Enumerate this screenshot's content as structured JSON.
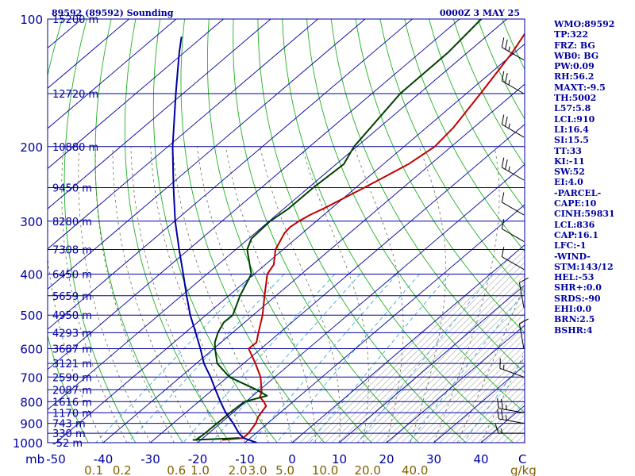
{
  "header": {
    "station": "89592 (89592) Sounding",
    "time": "0000Z  3 MAY 25"
  },
  "indices": [
    "WMO:89592",
    "TP:322",
    "FRZ: BG",
    "WB0: BG",
    "PW:0.09",
    "RH:56.2",
    "MAXT:-9.5",
    "TH:5002",
    "L57:5.8",
    "LCL:910",
    "LI:16.4",
    "SI:15.5",
    "TT:33",
    "KI:-11",
    "SW:52",
    "EI:4.0",
    "-PARCEL-",
    "CAPE:10",
    "CINH:59831",
    "LCL:836",
    "CAP:16.1",
    "LFC:-1",
    "-WIND-",
    "STM:143/12",
    "HEL:-53",
    "SHR+:0.0",
    "SRDS:-90",
    "EHI:0.0",
    "BRN:2.5",
    "BSHR:4"
  ],
  "chart_data": {
    "type": "line",
    "title": "89592 (89592) Sounding",
    "subtitle": "0000Z  3 MAY 25",
    "xlabel": "C",
    "ylabel": "mb",
    "xlim": [
      -50,
      50
    ],
    "ylim": [
      1000,
      100
    ],
    "y_scale": "log",
    "x_ticks": [
      "-50",
      "-40",
      "-30",
      "-20",
      "-10",
      "0",
      "10",
      "20",
      "30",
      "40"
    ],
    "y_ticks": [
      {
        "p": 100,
        "label": "100"
      },
      {
        "p": 200,
        "label": "200"
      },
      {
        "p": 300,
        "label": "300"
      },
      {
        "p": 400,
        "label": "400"
      },
      {
        "p": 500,
        "label": "500"
      },
      {
        "p": 600,
        "label": "600"
      },
      {
        "p": 700,
        "label": "700"
      },
      {
        "p": 800,
        "label": "800"
      },
      {
        "p": 900,
        "label": "900"
      },
      {
        "p": 1000,
        "label": "1000"
      }
    ],
    "mixing_ratio_label": "g/kg",
    "mixing_ratio_ticks": [
      {
        "label": "0.1",
        "t": -42
      },
      {
        "label": "0.2",
        "t": -36
      },
      {
        "label": "0.6",
        "t": -24.5
      },
      {
        "label": "1.0",
        "t": -19.5
      },
      {
        "label": "2.0",
        "t": -11.5
      },
      {
        "label": "3.0",
        "t": -7.3
      },
      {
        "label": "5.0",
        "t": -1.5
      },
      {
        "label": "10.0",
        "t": 7
      },
      {
        "label": "20.0",
        "t": 16
      },
      {
        "label": "40.0",
        "t": 26
      }
    ],
    "height_labels": [
      {
        "p": 100,
        "label": "15200 m"
      },
      {
        "p": 150,
        "label": "12720 m"
      },
      {
        "p": 200,
        "label": "10880 m"
      },
      {
        "p": 250,
        "label": "9450 m"
      },
      {
        "p": 300,
        "label": "8280 m"
      },
      {
        "p": 350,
        "label": "7308 m"
      },
      {
        "p": 400,
        "label": "6450 m"
      },
      {
        "p": 450,
        "label": "5659 m"
      },
      {
        "p": 500,
        "label": "4950 m"
      },
      {
        "p": 550,
        "label": "4293 m"
      },
      {
        "p": 600,
        "label": "3687 m"
      },
      {
        "p": 650,
        "label": "3121 m"
      },
      {
        "p": 700,
        "label": "2590 m"
      },
      {
        "p": 750,
        "label": "2087 m"
      },
      {
        "p": 800,
        "label": "1616 m"
      },
      {
        "p": 850,
        "label": "1170 m"
      },
      {
        "p": 900,
        "label": "743 m"
      },
      {
        "p": 950,
        "label": "330 m"
      },
      {
        "p": 1000,
        "label": "-52 m"
      }
    ],
    "series": [
      {
        "color": "#c00000",
        "points": [
          {
            "p": 985,
            "t": -15.5
          },
          {
            "p": 975,
            "t": -11.5
          },
          {
            "p": 950,
            "t": -11.6
          },
          {
            "p": 900,
            "t": -12.5
          },
          {
            "p": 870,
            "t": -13.6
          },
          {
            "p": 850,
            "t": -14.0
          },
          {
            "p": 820,
            "t": -14.6
          },
          {
            "p": 800,
            "t": -16.2
          },
          {
            "p": 780,
            "t": -18.2
          },
          {
            "p": 760,
            "t": -19.0
          },
          {
            "p": 700,
            "t": -23.0
          },
          {
            "p": 650,
            "t": -27.5
          },
          {
            "p": 600,
            "t": -32.6
          },
          {
            "p": 580,
            "t": -32.5
          },
          {
            "p": 550,
            "t": -34.5
          },
          {
            "p": 500,
            "t": -38.0
          },
          {
            "p": 450,
            "t": -42.4
          },
          {
            "p": 400,
            "t": -47.2
          },
          {
            "p": 380,
            "t": -48.2
          },
          {
            "p": 350,
            "t": -51.6
          },
          {
            "p": 320,
            "t": -53.8
          },
          {
            "p": 310,
            "t": -54.1
          },
          {
            "p": 300,
            "t": -53.7
          },
          {
            "p": 290,
            "t": -52.9
          },
          {
            "p": 280,
            "t": -51.6
          },
          {
            "p": 250,
            "t": -48.2
          },
          {
            "p": 220,
            "t": -44.7
          },
          {
            "p": 200,
            "t": -43.5
          },
          {
            "p": 180,
            "t": -44.3
          },
          {
            "p": 150,
            "t": -47.0
          },
          {
            "p": 120,
            "t": -50.5
          },
          {
            "p": 100,
            "t": -54.1
          }
        ]
      },
      {
        "color": "#004000",
        "points": [
          {
            "p": 975,
            "t": -12.3
          },
          {
            "p": 985,
            "t": -21.6
          },
          {
            "p": 985,
            "t": -21.1
          },
          {
            "p": 960,
            "t": -20.8
          },
          {
            "p": 900,
            "t": -20.7
          },
          {
            "p": 850,
            "t": -20.6
          },
          {
            "p": 800,
            "t": -20.3
          },
          {
            "p": 775,
            "t": -17.0
          },
          {
            "p": 750,
            "t": -20.7
          },
          {
            "p": 700,
            "t": -29.6
          },
          {
            "p": 650,
            "t": -35.6
          },
          {
            "p": 600,
            "t": -39.7
          },
          {
            "p": 580,
            "t": -41.3
          },
          {
            "p": 550,
            "t": -43.1
          },
          {
            "p": 520,
            "t": -44.4
          },
          {
            "p": 500,
            "t": -44.3
          },
          {
            "p": 450,
            "t": -47.6
          },
          {
            "p": 400,
            "t": -50.6
          },
          {
            "p": 350,
            "t": -57.6
          },
          {
            "p": 330,
            "t": -59.4
          },
          {
            "p": 300,
            "t": -59.8
          },
          {
            "p": 280,
            "t": -59.0
          },
          {
            "p": 250,
            "t": -59.0
          },
          {
            "p": 220,
            "t": -58.4
          },
          {
            "p": 200,
            "t": -60.6
          },
          {
            "p": 150,
            "t": -64.0
          },
          {
            "p": 120,
            "t": -64.1
          },
          {
            "p": 100,
            "t": -65.4
          }
        ]
      },
      {
        "color": "#0000a0",
        "points": [
          {
            "p": 1000,
            "t": -7.5
          },
          {
            "p": 975,
            "t": -11.5
          },
          {
            "p": 950,
            "t": -13.6
          },
          {
            "p": 900,
            "t": -17.3
          },
          {
            "p": 850,
            "t": -21.5
          },
          {
            "p": 800,
            "t": -25.4
          },
          {
            "p": 750,
            "t": -29.4
          },
          {
            "p": 700,
            "t": -33.6
          },
          {
            "p": 650,
            "t": -38.4
          },
          {
            "p": 600,
            "t": -42.8
          },
          {
            "p": 550,
            "t": -47.8
          },
          {
            "p": 500,
            "t": -53.3
          },
          {
            "p": 450,
            "t": -58.9
          },
          {
            "p": 400,
            "t": -65.0
          },
          {
            "p": 350,
            "t": -72.0
          },
          {
            "p": 300,
            "t": -79.9
          },
          {
            "p": 250,
            "t": -88.6
          },
          {
            "p": 200,
            "t": -99.0
          },
          {
            "p": 150,
            "t": -111.5
          },
          {
            "p": 120,
            "t": -121.0
          },
          {
            "p": 110,
            "t": -124.5
          }
        ]
      }
    ],
    "winds": [
      {
        "p": 125,
        "dir": 300,
        "spd": 25
      },
      {
        "p": 150,
        "dir": 300,
        "spd": 25
      },
      {
        "p": 190,
        "dir": 300,
        "spd": 25
      },
      {
        "p": 240,
        "dir": 300,
        "spd": 25
      },
      {
        "p": 290,
        "dir": 300,
        "spd": 10
      },
      {
        "p": 335,
        "dir": 300,
        "spd": 10
      },
      {
        "p": 390,
        "dir": 300,
        "spd": 10
      },
      {
        "p": 480,
        "dir": 350,
        "spd": 10
      },
      {
        "p": 600,
        "dir": 350,
        "spd": 10
      },
      {
        "p": 700,
        "dir": 290,
        "spd": 15
      },
      {
        "p": 850,
        "dir": 280,
        "spd": 25
      },
      {
        "p": 900,
        "dir": 280,
        "spd": 25
      },
      {
        "p": 950,
        "dir": 270,
        "spd": 15
      }
    ]
  }
}
